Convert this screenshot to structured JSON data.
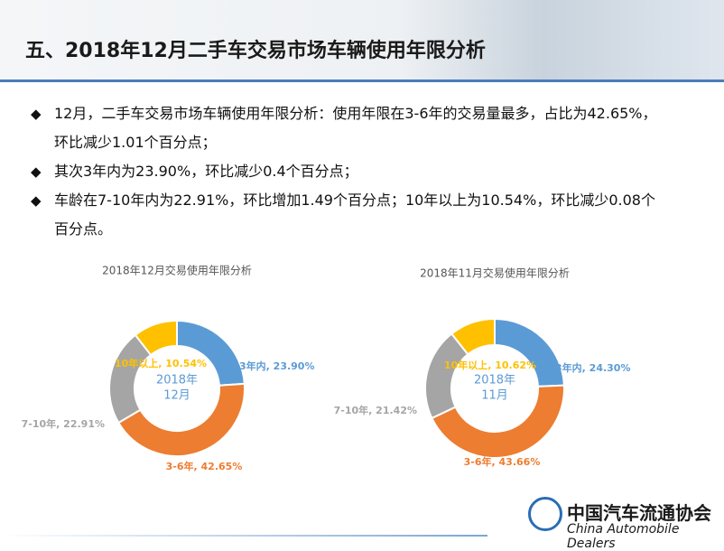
{
  "header": {
    "title": "五、2018年12月二手车交易市场车辆使用年限分析"
  },
  "bullets": [
    "12月，二手车交易市场车辆使用年限分析：使用年限在3-6年的交易量最多，占比为42.65%，环比减少1.01个百分点；",
    "其次3年内为23.90%，环比减少0.4个百分点；",
    "车龄在7-10年内为22.91%，环比增加1.49个百分点；10年以上为10.54%，环比减少0.08个百分点。"
  ],
  "footer": {
    "org_cn": "中国汽车流通协会",
    "org_en": "China Automobile Dealers"
  },
  "chart_data": [
    {
      "type": "donut",
      "title": "2018年12月交易使用年限分析",
      "center_label": [
        "2018年",
        "12月"
      ],
      "values": [
        23.9,
        42.65,
        22.91,
        10.54
      ],
      "value_labels": [
        "3年内, 23.90%",
        "3-6年, 42.65%",
        "7-10年, 22.91%",
        "10年以上, 10.54%"
      ],
      "colors": [
        "#5b9bd5",
        "#ed7d31",
        "#a5a5a5",
        "#ffc000"
      ]
    },
    {
      "type": "donut",
      "title": "2018年11月交易使用年限分析",
      "center_label": [
        "2018年",
        "11月"
      ],
      "values": [
        24.3,
        43.66,
        21.42,
        10.62
      ],
      "value_labels": [
        "3年内, 24.30%",
        "3-6年, 43.66%",
        "7-10年, 21.42%",
        "10年以上, 10.62%"
      ],
      "colors": [
        "#5b9bd5",
        "#ed7d31",
        "#a5a5a5",
        "#ffc000"
      ]
    }
  ]
}
